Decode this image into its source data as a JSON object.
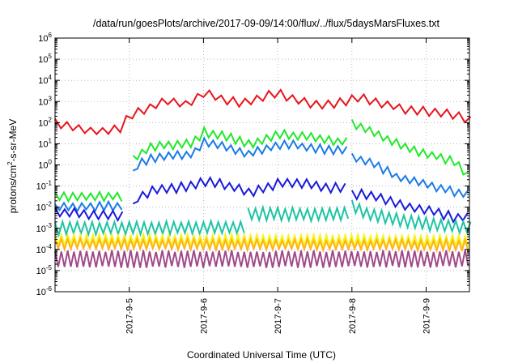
{
  "chart_data": {
    "type": "line",
    "title": "/data/run/goesPlots/archive/2017-09-09/14:00/flux/../flux/5daysMarsFluxes.txt",
    "xlabel": "Coordinated Universal Time (UTC)",
    "ylabel": "protons/cm2-s-sr-MeV",
    "ylabel_parts": {
      "pre": "protons/cm",
      "sup": "2",
      "post": "-s-sr-MeV"
    },
    "yscale": "log",
    "ylim_exp": [
      -6,
      6
    ],
    "y_tick_exponents": [
      -6,
      -5,
      -4,
      -3,
      -2,
      -1,
      0,
      1,
      2,
      3,
      4,
      5,
      6
    ],
    "xlim_days": [
      "2017-09-04",
      "2017-09-09T14:00"
    ],
    "x_ticks": [
      "2017-9-5",
      "2017-9-6",
      "2017-9-7",
      "2017-9-8",
      "2017-9-9"
    ],
    "grid": true,
    "series": [
      {
        "color": "#e8141c",
        "segments": [
          [
            [
              4.0,
              2.0
            ],
            [
              4.3,
              1.7
            ],
            [
              4.65,
              1.55
            ],
            [
              4.9,
              1.75
            ],
            [
              5.0,
              2.35
            ],
            [
              5.3,
              2.75
            ],
            [
              5.5,
              3.0
            ],
            [
              5.65,
              3.0
            ],
            [
              5.75,
              2.8
            ],
            [
              6.0,
              3.4
            ],
            [
              6.3,
              3.05
            ],
            [
              6.5,
              2.95
            ],
            [
              6.7,
              3.1
            ],
            [
              7.0,
              3.4
            ],
            [
              7.3,
              3.0
            ],
            [
              7.6,
              2.8
            ],
            [
              7.95,
              3.05
            ],
            [
              8.1,
              3.2
            ],
            [
              8.4,
              2.9
            ],
            [
              8.7,
              2.65
            ],
            [
              9.0,
              2.55
            ],
            [
              9.3,
              2.45
            ],
            [
              9.6,
              2.1
            ]
          ]
        ],
        "period": 0.16,
        "amp": 0.35,
        "noise": 0.05
      },
      {
        "color": "#22e82a",
        "segments": [
          [
            [
              4.0,
              -1.5
            ],
            [
              4.95,
              -1.5
            ]
          ],
          [
            [
              5.05,
              0.25
            ],
            [
              5.1,
              0.4
            ],
            [
              5.3,
              0.85
            ],
            [
              5.6,
              0.95
            ],
            [
              5.85,
              1.0
            ],
            [
              6.0,
              1.55
            ],
            [
              6.3,
              1.35
            ],
            [
              6.6,
              1.0
            ],
            [
              6.8,
              1.15
            ],
            [
              7.05,
              1.45
            ],
            [
              7.4,
              1.35
            ],
            [
              7.75,
              1.1
            ],
            [
              7.95,
              1.15
            ]
          ],
          [
            [
              8.0,
              1.95
            ],
            [
              8.3,
              1.55
            ],
            [
              8.6,
              1.0
            ],
            [
              8.85,
              0.65
            ],
            [
              9.1,
              0.45
            ],
            [
              9.4,
              0.15
            ],
            [
              9.6,
              -0.65
            ]
          ]
        ],
        "period": 0.12,
        "amp": 0.35,
        "noise": 0.05
      },
      {
        "color": "#1a7be8",
        "segments": [
          [
            [
              4.0,
              -2.0
            ],
            [
              4.95,
              -1.95
            ]
          ],
          [
            [
              5.05,
              -0.5
            ],
            [
              5.1,
              0.0
            ],
            [
              5.3,
              0.3
            ],
            [
              5.6,
              0.45
            ],
            [
              5.85,
              0.5
            ],
            [
              6.0,
              1.1
            ],
            [
              6.3,
              0.85
            ],
            [
              6.6,
              0.5
            ],
            [
              6.8,
              0.7
            ],
            [
              7.05,
              1.0
            ],
            [
              7.4,
              0.85
            ],
            [
              7.75,
              0.65
            ],
            [
              7.95,
              0.7
            ]
          ],
          [
            [
              8.0,
              0.35
            ],
            [
              8.3,
              0.05
            ],
            [
              8.6,
              -0.55
            ],
            [
              8.85,
              -0.8
            ],
            [
              9.1,
              -1.0
            ],
            [
              9.4,
              -1.3
            ],
            [
              9.6,
              -1.45
            ]
          ]
        ],
        "period": 0.12,
        "amp": 0.35,
        "noise": 0.05
      },
      {
        "color": "#1a1adb",
        "segments": [
          [
            [
              4.0,
              -2.25
            ],
            [
              4.95,
              -2.4
            ]
          ],
          [
            [
              5.05,
              -2.05
            ],
            [
              5.1,
              -1.6
            ],
            [
              5.3,
              -1.2
            ],
            [
              5.6,
              -1.1
            ],
            [
              5.85,
              -1.0
            ],
            [
              6.0,
              -0.75
            ],
            [
              6.3,
              -0.95
            ],
            [
              6.6,
              -1.3
            ],
            [
              6.8,
              -1.15
            ],
            [
              7.05,
              -0.85
            ],
            [
              7.4,
              -0.9
            ],
            [
              7.75,
              -1.1
            ],
            [
              7.95,
              -1.05
            ]
          ],
          [
            [
              8.0,
              -1.35
            ],
            [
              8.3,
              -1.5
            ],
            [
              8.6,
              -1.85
            ],
            [
              8.85,
              -2.05
            ],
            [
              9.1,
              -2.2
            ],
            [
              9.4,
              -2.5
            ],
            [
              9.6,
              -2.45
            ]
          ]
        ],
        "period": 0.13,
        "amp": 0.4,
        "noise": 0.05
      },
      {
        "color": "#1ec4a4",
        "segments": [
          [
            [
              4.0,
              -3.0
            ],
            [
              6.55,
              -2.95
            ]
          ],
          [
            [
              6.6,
              -2.3
            ],
            [
              7.5,
              -2.35
            ],
            [
              7.95,
              -2.3
            ]
          ],
          [
            [
              8.0,
              -1.95
            ],
            [
              8.2,
              -2.3
            ],
            [
              8.6,
              -2.6
            ],
            [
              9.0,
              -2.8
            ],
            [
              9.6,
              -2.95
            ]
          ]
        ],
        "period": 0.1,
        "amp": 0.55,
        "noise": 0.04
      },
      {
        "color": "#f5f51a",
        "segments": [
          [
            [
              4.0,
              -3.55
            ],
            [
              9.6,
              -3.6
            ]
          ]
        ],
        "period": 0.085,
        "amp": 0.5,
        "noise": 0.04
      },
      {
        "color": "#ffb11a",
        "segments": [
          [
            [
              4.0,
              -3.75
            ],
            [
              9.6,
              -3.8
            ]
          ]
        ],
        "period": 0.085,
        "amp": 0.45,
        "noise": 0.04
      },
      {
        "color": "#a04a8a",
        "segments": [
          [
            [
              4.0,
              -4.45
            ],
            [
              9.6,
              -4.45
            ]
          ]
        ],
        "period": 0.085,
        "amp": 0.75,
        "noise": 0.05
      }
    ]
  }
}
